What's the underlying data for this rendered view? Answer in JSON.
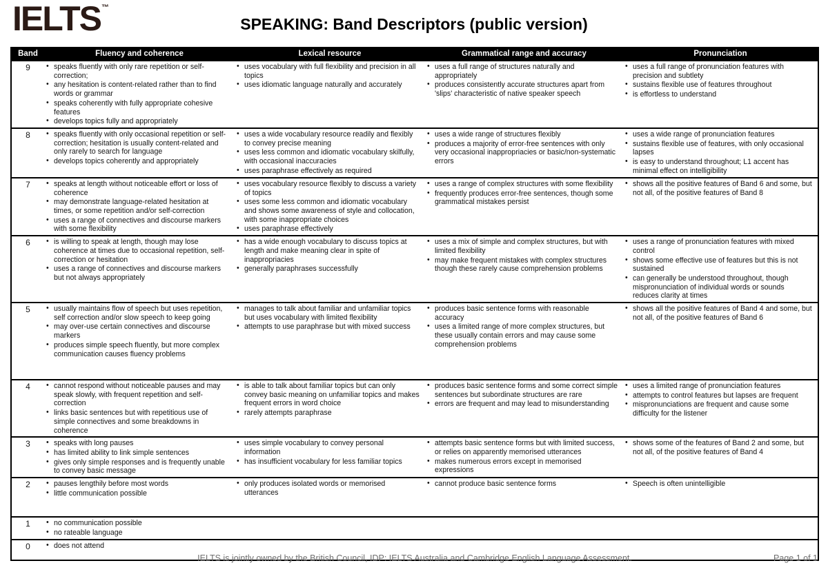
{
  "logo": {
    "text": "IELTS",
    "tm": "™",
    "color": "#2b1a15"
  },
  "title": "SPEAKING: Band Descriptors (public version)",
  "table": {
    "columns": [
      "Band",
      "Fluency and coherence",
      "Lexical resource",
      "Grammatical range and accuracy",
      "Pronunciation"
    ],
    "rows": [
      {
        "band": "9",
        "fluency": [
          "speaks fluently with only rare repetition or self-correction;",
          "any hesitation is content-related rather than to find words or grammar",
          "speaks coherently with fully appropriate cohesive features",
          "develops topics fully and appropriately"
        ],
        "lexical": [
          "uses vocabulary with full flexibility and precision in all topics",
          "uses idiomatic language naturally and accurately"
        ],
        "grammar": [
          "uses a full range of structures naturally and appropriately",
          "produces consistently accurate structures apart from 'slips' characteristic of native speaker speech"
        ],
        "pronunciation": [
          "uses a full range of pronunciation features with precision and subtlety",
          "sustains flexible use of features throughout",
          "is effortless to understand"
        ]
      },
      {
        "band": "8",
        "fluency": [
          "speaks fluently with only occasional repetition or self-correction; hesitation is usually content-related and only rarely to search for language",
          "develops topics coherently and appropriately"
        ],
        "lexical": [
          "uses a wide vocabulary resource readily and flexibly to convey precise meaning",
          "uses less common and idiomatic vocabulary skilfully, with occasional inaccuracies",
          "uses paraphrase effectively as required"
        ],
        "grammar": [
          "uses a wide range of structures flexibly",
          "produces a majority of error-free sentences with only very occasional inappropriacies or basic/non-systematic errors"
        ],
        "pronunciation": [
          "uses a wide range of pronunciation features",
          "sustains flexible use of features, with only occasional lapses",
          "is easy to understand throughout; L1 accent has minimal effect on intelligibility"
        ]
      },
      {
        "band": "7",
        "fluency": [
          "speaks at length without noticeable effort or loss of coherence",
          "may demonstrate language-related hesitation at times, or some repetition and/or self-correction",
          "uses a range of connectives and discourse markers with some flexibility"
        ],
        "lexical": [
          "uses vocabulary resource flexibly to discuss a variety of topics",
          "uses some less common and idiomatic vocabulary and shows some awareness of style and collocation, with some inappropriate choices",
          "uses paraphrase effectively"
        ],
        "grammar": [
          "uses a range of complex structures with some flexibility",
          "frequently produces error-free sentences, though some grammatical mistakes persist"
        ],
        "pronunciation": [
          "shows all the positive features of Band 6 and some, but not all, of the positive features of Band 8"
        ]
      },
      {
        "band": "6",
        "fluency": [
          "is willing to speak at length, though may lose coherence at times due to occasional repetition, self-correction or hesitation",
          "uses a range of connectives and discourse markers but not always appropriately"
        ],
        "lexical": [
          "has a wide enough vocabulary to discuss topics at length and make meaning clear in spite of inappropriacies",
          "generally paraphrases successfully"
        ],
        "grammar": [
          "uses a mix of simple and complex structures, but with limited flexibility",
          "may make frequent mistakes with complex structures though these rarely cause comprehension problems"
        ],
        "pronunciation": [
          "uses a range of pronunciation features with mixed control",
          "shows some effective use of features but this is not sustained",
          "can generally be understood throughout, though mispronunciation of individual words or sounds reduces clarity at times"
        ]
      },
      {
        "band": "5",
        "fluency": [
          "usually maintains flow of speech but uses repetition, self correction and/or slow speech to keep going",
          "may over-use certain connectives and discourse markers",
          "produces simple speech fluently, but more complex communication causes fluency problems"
        ],
        "lexical": [
          "manages to talk about familiar and unfamiliar topics but uses vocabulary with limited flexibility",
          "attempts to use paraphrase but with mixed success"
        ],
        "grammar": [
          "produces basic sentence forms with reasonable accuracy",
          "uses a limited range of more complex structures, but these usually contain errors and may cause some comprehension problems"
        ],
        "pronunciation": [
          "shows all the positive features of Band 4 and some, but not all, of the positive features of Band 6"
        ]
      },
      {
        "band": "4",
        "fluency": [
          "cannot respond without noticeable pauses and may speak slowly, with frequent repetition and self-correction",
          "links basic sentences but with repetitious use of simple connectives and some breakdowns in coherence"
        ],
        "lexical": [
          "is able to talk about familiar topics but can only convey basic meaning on unfamiliar topics and makes frequent errors in word choice",
          "rarely attempts paraphrase"
        ],
        "grammar": [
          "produces basic sentence forms and some correct simple sentences but subordinate structures are rare",
          "errors are frequent and may lead to misunderstanding"
        ],
        "pronunciation": [
          "uses a limited range of pronunciation features",
          "attempts to control features but lapses are frequent",
          "mispronunciations are frequent and cause some difficulty for the listener"
        ]
      },
      {
        "band": "3",
        "fluency": [
          "speaks with long pauses",
          "has limited ability to link simple sentences",
          "gives only simple responses and is frequently unable to convey basic message"
        ],
        "lexical": [
          "uses simple vocabulary to convey personal information",
          "has insufficient vocabulary for less familiar topics"
        ],
        "grammar": [
          "attempts basic sentence forms but with limited success, or relies on apparently memorised utterances",
          "makes numerous errors except in memorised expressions"
        ],
        "pronunciation": [
          "shows some of the features of Band 2 and some, but not all, of the positive features of Band 4"
        ]
      },
      {
        "band": "2",
        "fluency": [
          "pauses lengthily before most words",
          "little communication possible"
        ],
        "lexical": [
          "only produces isolated words or memorised utterances"
        ],
        "grammar": [
          "cannot produce basic sentence forms"
        ],
        "pronunciation": [
          "Speech is often unintelligible"
        ]
      },
      {
        "band": "1",
        "fluency": [
          "no communication possible",
          "no rateable language"
        ],
        "lexical": [],
        "grammar": [],
        "pronunciation": []
      },
      {
        "band": "0",
        "fluency": [
          "does not attend"
        ],
        "lexical": [],
        "grammar": [],
        "pronunciation": []
      }
    ]
  },
  "footer": {
    "ownership": "IELTS is jointly owned by the British Council, IDP: IELTS Australia and Cambridge English Language Assessment.",
    "page": "Page 1 of  1"
  }
}
